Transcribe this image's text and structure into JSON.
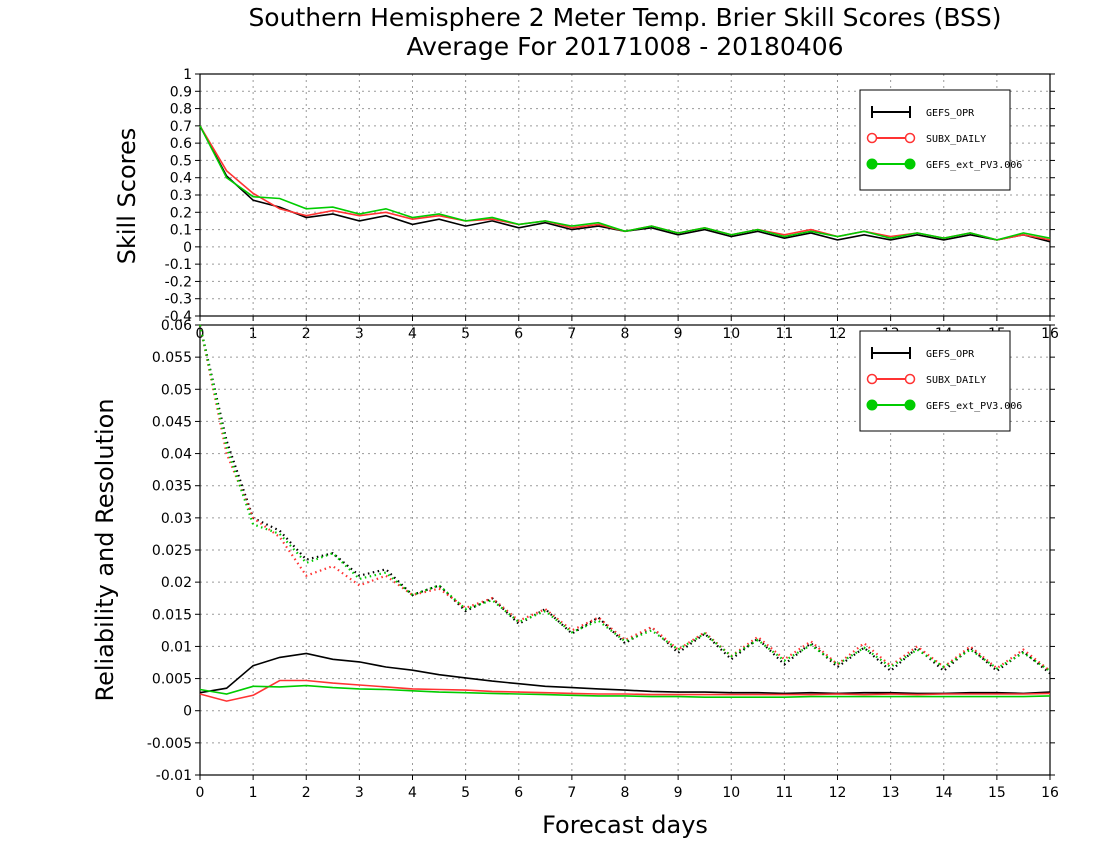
{
  "title_line1": "Southern Hemisphere 2 Meter Temp. Brier Skill Scores (BSS)",
  "title_line2": "Average For 20171008 - 20180406",
  "legend": [
    {
      "name": "GEFS_OPR",
      "color": "#000000",
      "marker": "plus"
    },
    {
      "name": "SUBX_DAILY",
      "color": "#ff3333",
      "marker": "open-circle"
    },
    {
      "name": "GEFS_ext_PV3.006",
      "color": "#00cc00",
      "marker": "filled-circle"
    }
  ],
  "chart_data": [
    {
      "type": "line",
      "title": "Southern Hemisphere 2 Meter Temp. Brier Skill Scores (BSS)",
      "subtitle": "Average For 20171008 - 20180406",
      "xlabel": "",
      "ylabel": "Skill Scores",
      "xlim": [
        0,
        16
      ],
      "ylim": [
        -0.4,
        1
      ],
      "grid": true,
      "legend_position": "top-right",
      "x_ticks": [
        0,
        1,
        2,
        3,
        4,
        5,
        6,
        7,
        8,
        9,
        10,
        11,
        12,
        13,
        14,
        15,
        16
      ],
      "y_ticks": [
        "-0.4",
        "-0.3",
        "-0.2",
        "-0.1",
        "0",
        "0.1",
        "0.2",
        "0.3",
        "0.4",
        "0.5",
        "0.6",
        "0.7",
        "0.8",
        "0.9",
        "1"
      ],
      "x": [
        0,
        0.5,
        1,
        1.5,
        2,
        2.5,
        3,
        3.5,
        4,
        4.5,
        5,
        5.5,
        6,
        6.5,
        7,
        7.5,
        8,
        8.5,
        9,
        9.5,
        10,
        10.5,
        11,
        11.5,
        12,
        12.5,
        13,
        13.5,
        14,
        14.5,
        15,
        15.5,
        16
      ],
      "series": [
        {
          "name": "GEFS_OPR",
          "color": "#000000",
          "values": [
            0.7,
            0.41,
            0.27,
            0.23,
            0.17,
            0.19,
            0.15,
            0.18,
            0.13,
            0.16,
            0.12,
            0.15,
            0.11,
            0.14,
            0.1,
            0.12,
            0.09,
            0.11,
            0.07,
            0.1,
            0.06,
            0.09,
            0.05,
            0.08,
            0.04,
            0.07,
            0.04,
            0.07,
            0.04,
            0.07,
            0.04,
            0.07,
            0.03
          ]
        },
        {
          "name": "SUBX_DAILY",
          "color": "#ff3333",
          "values": [
            0.7,
            0.44,
            0.31,
            0.22,
            0.18,
            0.21,
            0.18,
            0.2,
            0.16,
            0.18,
            0.15,
            0.16,
            0.13,
            0.15,
            0.11,
            0.13,
            0.09,
            0.12,
            0.08,
            0.11,
            0.07,
            0.1,
            0.07,
            0.1,
            0.06,
            0.09,
            0.06,
            0.08,
            0.05,
            0.08,
            0.04,
            0.07,
            0.04
          ]
        },
        {
          "name": "GEFS_ext_PV3.006",
          "color": "#00cc00",
          "values": [
            0.7,
            0.4,
            0.29,
            0.28,
            0.22,
            0.23,
            0.19,
            0.22,
            0.17,
            0.19,
            0.15,
            0.17,
            0.13,
            0.15,
            0.12,
            0.14,
            0.09,
            0.12,
            0.08,
            0.11,
            0.07,
            0.1,
            0.06,
            0.09,
            0.06,
            0.09,
            0.05,
            0.08,
            0.05,
            0.08,
            0.04,
            0.08,
            0.05
          ]
        }
      ]
    },
    {
      "type": "line",
      "xlabel": "Forecast days",
      "ylabel": "Reliability and Resolution",
      "xlim": [
        0,
        16
      ],
      "ylim": [
        -0.01,
        0.06
      ],
      "grid": true,
      "legend_position": "top-right",
      "x_ticks": [
        0,
        1,
        2,
        3,
        4,
        5,
        6,
        7,
        8,
        9,
        10,
        11,
        12,
        13,
        14,
        15,
        16
      ],
      "y_ticks": [
        "-0.01",
        "-0.005",
        "0",
        "0.005",
        "0.01",
        "0.015",
        "0.02",
        "0.025",
        "0.03",
        "0.035",
        "0.04",
        "0.045",
        "0.05",
        "0.055",
        "0.06"
      ],
      "x": [
        0,
        0.5,
        1,
        1.5,
        2,
        2.5,
        3,
        3.5,
        4,
        4.5,
        5,
        5.5,
        6,
        6.5,
        7,
        7.5,
        8,
        8.5,
        9,
        9.5,
        10,
        10.5,
        11,
        11.5,
        12,
        12.5,
        13,
        13.5,
        14,
        14.5,
        15,
        15.5,
        16
      ],
      "series": [
        {
          "name": "GEFS_OPR",
          "metric": "reliability",
          "style": "solid",
          "color": "#000000",
          "values": [
            0.0028,
            0.0035,
            0.007,
            0.0083,
            0.0089,
            0.008,
            0.0076,
            0.0068,
            0.0063,
            0.0056,
            0.0051,
            0.0046,
            0.0042,
            0.0038,
            0.0036,
            0.0034,
            0.0032,
            0.003,
            0.0029,
            0.0029,
            0.0028,
            0.0028,
            0.0027,
            0.0028,
            0.0027,
            0.0028,
            0.0028,
            0.0027,
            0.0027,
            0.0028,
            0.0028,
            0.0027,
            0.0029
          ]
        },
        {
          "name": "SUBX_DAILY",
          "metric": "reliability",
          "style": "solid",
          "color": "#ff3333",
          "values": [
            0.0026,
            0.0015,
            0.0024,
            0.0047,
            0.0047,
            0.0043,
            0.004,
            0.0037,
            0.0034,
            0.0033,
            0.0032,
            0.003,
            0.0029,
            0.0028,
            0.0027,
            0.0026,
            0.0026,
            0.0025,
            0.0025,
            0.0025,
            0.0025,
            0.0025,
            0.0025,
            0.0025,
            0.0026,
            0.0025,
            0.0026,
            0.0025,
            0.0026,
            0.0026,
            0.0026,
            0.0026,
            0.0027
          ]
        },
        {
          "name": "GEFS_ext_PV3.006",
          "metric": "reliability",
          "style": "solid",
          "color": "#00cc00",
          "values": [
            0.0033,
            0.0026,
            0.0038,
            0.0037,
            0.0039,
            0.0036,
            0.0034,
            0.0033,
            0.0031,
            0.0029,
            0.0028,
            0.0027,
            0.0026,
            0.0025,
            0.0024,
            0.0023,
            0.0023,
            0.0022,
            0.0022,
            0.0021,
            0.0021,
            0.0021,
            0.0021,
            0.0022,
            0.0022,
            0.0022,
            0.0022,
            0.0022,
            0.0022,
            0.0022,
            0.0022,
            0.0022,
            0.0023
          ]
        },
        {
          "name": "GEFS_OPR",
          "metric": "resolution",
          "style": "dotted",
          "color": "#000000",
          "values": [
            0.06,
            0.042,
            0.03,
            0.028,
            0.0235,
            0.0245,
            0.021,
            0.022,
            0.018,
            0.0195,
            0.0155,
            0.0175,
            0.0135,
            0.0158,
            0.012,
            0.0145,
            0.0105,
            0.013,
            0.009,
            0.012,
            0.008,
            0.0112,
            0.0072,
            0.0105,
            0.0068,
            0.0098,
            0.0062,
            0.0098,
            0.0062,
            0.0098,
            0.0062,
            0.0092,
            0.0058
          ]
        },
        {
          "name": "SUBX_DAILY",
          "metric": "resolution",
          "style": "dotted",
          "color": "#ff3333",
          "values": [
            0.06,
            0.04,
            0.03,
            0.027,
            0.021,
            0.0225,
            0.0195,
            0.021,
            0.018,
            0.019,
            0.016,
            0.0175,
            0.014,
            0.0158,
            0.0125,
            0.0145,
            0.011,
            0.013,
            0.0095,
            0.0122,
            0.0085,
            0.0115,
            0.008,
            0.0108,
            0.0072,
            0.0105,
            0.007,
            0.01,
            0.0068,
            0.01,
            0.0066,
            0.0095,
            0.0062
          ]
        },
        {
          "name": "GEFS_ext_PV3.006",
          "metric": "resolution",
          "style": "dotted",
          "color": "#00cc00",
          "values": [
            0.06,
            0.041,
            0.029,
            0.0275,
            0.023,
            0.0245,
            0.0205,
            0.0215,
            0.018,
            0.0195,
            0.0158,
            0.0172,
            0.0138,
            0.0155,
            0.0122,
            0.014,
            0.0108,
            0.0125,
            0.0095,
            0.012,
            0.0085,
            0.011,
            0.0078,
            0.0102,
            0.0072,
            0.0098,
            0.0068,
            0.0095,
            0.0068,
            0.0095,
            0.0066,
            0.009,
            0.0062
          ]
        }
      ]
    }
  ]
}
